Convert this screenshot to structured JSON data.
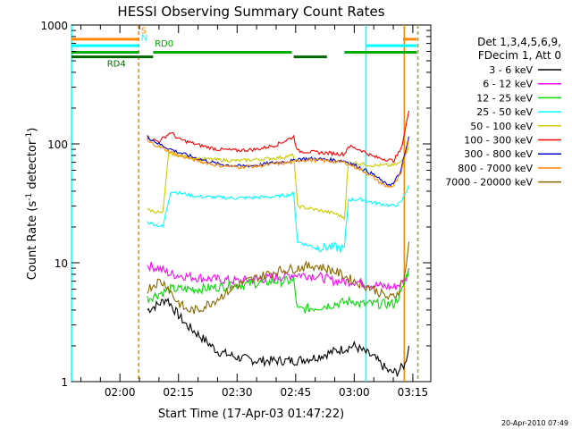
{
  "chart_data": {
    "type": "line",
    "title": "HESSI Observing Summary Count Rates",
    "xlabel": "Start Time (17-Apr-03 01:47:22)",
    "ylabel_main": "Count Rate (s",
    "ylabel_sup1": "-1",
    "ylabel_mid": " detector",
    "ylabel_sup2": "-1",
    "ylabel_end": ")",
    "yscale": "log",
    "ylim": [
      1,
      1000
    ],
    "xlim_minutes": [
      -12.4,
      79.6
    ],
    "x_tick_labels": [
      "02:00",
      "02:15",
      "02:30",
      "02:45",
      "03:00",
      "03:15"
    ],
    "x_tick_minutes": [
      0,
      15,
      30,
      45,
      60,
      75
    ],
    "y_tick_labels": [
      "1",
      "10",
      "100",
      "1000"
    ],
    "y_tick_values": [
      1,
      10,
      100,
      1000
    ],
    "legend_title_lines": [
      "Det 1,3,4,5,6,9,",
      "FDecim 1, Att 0"
    ],
    "series": [
      {
        "name": "3 - 6 keV",
        "color": "#000000",
        "x": [
          7,
          10,
          12,
          14,
          17,
          20,
          25,
          30,
          35,
          40,
          45,
          50,
          55,
          60,
          65,
          69,
          71,
          73,
          74
        ],
        "y": [
          4,
          4.5,
          5,
          4,
          3,
          2.5,
          1.8,
          1.6,
          1.5,
          1.5,
          1.5,
          1.6,
          1.8,
          2,
          1.6,
          1.2,
          1.2,
          1.4,
          2
        ]
      },
      {
        "name": "6 - 12 keV",
        "color": "#ff00ff",
        "x": [
          7,
          10,
          13,
          20,
          30,
          40,
          45,
          50,
          55,
          60,
          65,
          70,
          73,
          74
        ],
        "y": [
          9.5,
          9,
          8,
          7.5,
          7,
          7.5,
          8,
          7.8,
          7,
          7,
          6.5,
          6.2,
          7,
          9
        ]
      },
      {
        "name": "12 - 25 keV",
        "color": "#00dd00",
        "x": [
          7,
          10,
          13,
          20,
          30,
          40,
          44.5,
          45.5,
          50,
          55,
          60,
          61,
          65,
          70,
          72,
          74
        ],
        "y": [
          5,
          5.5,
          6,
          6,
          6.5,
          7,
          7,
          4,
          4.2,
          4.5,
          4.8,
          4.5,
          4.5,
          4.5,
          5.5,
          9
        ]
      },
      {
        "name": "25 - 50 keV",
        "color": "#00ffff",
        "x": [
          7,
          11,
          13,
          20,
          30,
          40,
          44.5,
          45.5,
          50,
          55,
          57.5,
          58.5,
          62,
          65,
          70,
          72,
          74
        ],
        "y": [
          22,
          20,
          40,
          36,
          35,
          36,
          38,
          15,
          13.5,
          13.5,
          13,
          34,
          34,
          32,
          30,
          32,
          45
        ]
      },
      {
        "name": "50 - 100 keV",
        "color": "#cccc00",
        "x": [
          7,
          11,
          12.5,
          15,
          20,
          30,
          40,
          44.5,
          45.5,
          50,
          55,
          57.5,
          58.5,
          62,
          65,
          70,
          72,
          74
        ],
        "y": [
          28,
          26,
          85,
          80,
          75,
          72,
          76,
          80,
          30,
          28,
          26,
          24,
          70,
          68,
          66,
          66,
          70,
          95
        ]
      },
      {
        "name": "100 - 300 keV",
        "color": "#ff0000",
        "x": [
          7,
          10,
          13,
          15,
          20,
          25,
          30,
          35,
          40,
          44.5,
          45.5,
          50,
          55,
          57.5,
          58.5,
          62,
          65,
          70,
          72,
          73,
          74
        ],
        "y": [
          112,
          105,
          125,
          110,
          98,
          90,
          88,
          90,
          98,
          115,
          87,
          85,
          83,
          82,
          96,
          88,
          78,
          72,
          90,
          130,
          190
        ]
      },
      {
        "name": "300 - 800 keV",
        "color": "#0000cc",
        "x": [
          7,
          10,
          13,
          15,
          20,
          25,
          30,
          35,
          40,
          44.5,
          45.5,
          50,
          55,
          57.5,
          58.5,
          62,
          65,
          68,
          70,
          72,
          74
        ],
        "y": [
          115,
          100,
          90,
          85,
          75,
          68,
          65,
          66,
          70,
          72,
          75,
          75,
          73,
          72,
          70,
          62,
          55,
          46,
          46,
          60,
          115
        ]
      },
      {
        "name": "800 - 7000 keV",
        "color": "#ff8800",
        "x": [
          7,
          10,
          13,
          15,
          20,
          25,
          30,
          35,
          40,
          44.5,
          45.5,
          50,
          55,
          57.5,
          58.5,
          62,
          65,
          68,
          70,
          72,
          74
        ],
        "y": [
          105,
          95,
          85,
          80,
          72,
          66,
          64,
          65,
          68,
          70,
          73,
          73,
          71,
          70,
          68,
          60,
          52,
          44,
          44,
          56,
          110
        ]
      },
      {
        "name": "7000 - 20000 keV",
        "color": "#886600",
        "x": [
          7,
          10,
          12,
          14,
          17,
          20,
          25,
          30,
          35,
          40,
          45,
          50,
          55,
          60,
          65,
          69,
          71,
          73,
          74
        ],
        "y": [
          6,
          7,
          6.5,
          5,
          4,
          4,
          5,
          6.5,
          7.5,
          8.5,
          9,
          9.5,
          8.5,
          7,
          6,
          5,
          5.5,
          8,
          15
        ]
      }
    ],
    "flags": [
      {
        "label": "S",
        "color": "#ff8800",
        "y_level": 760,
        "segments": [
          [
            -12.4,
            4.8
          ],
          [
            72.5,
            76
          ]
        ]
      },
      {
        "label": "N",
        "color": "#00ffff",
        "y_level": 670,
        "segments": [
          [
            -12.4,
            4.8
          ],
          [
            63,
            76
          ]
        ]
      },
      {
        "label": "RD0",
        "color": "#00aa00",
        "y_level": 590,
        "segments": [
          [
            -12.4,
            4.8
          ],
          [
            8.5,
            44
          ],
          [
            57.5,
            76
          ]
        ]
      },
      {
        "label": "RD4",
        "color": "#006600",
        "y_level": 540,
        "segments": [
          [
            -12.4,
            8.5
          ],
          [
            44.5,
            53
          ]
        ]
      }
    ],
    "vertical_lines": [
      {
        "x": -12.4,
        "color": "#00ffff",
        "dashed": false
      },
      {
        "x": 4.8,
        "color": "#00ffff",
        "dashed": true
      },
      {
        "x": 4.8,
        "color": "#ff8800",
        "dashed": true
      },
      {
        "x": 63,
        "color": "#00ffff",
        "dashed": false
      },
      {
        "x": 72.8,
        "color": "#ff8800",
        "dashed": false
      },
      {
        "x": 76.3,
        "color": "#00ffff",
        "dashed": true
      },
      {
        "x": 76.3,
        "color": "#ff8800",
        "dashed": true
      }
    ],
    "footer_date": "20-Apr-2010 07:49"
  }
}
